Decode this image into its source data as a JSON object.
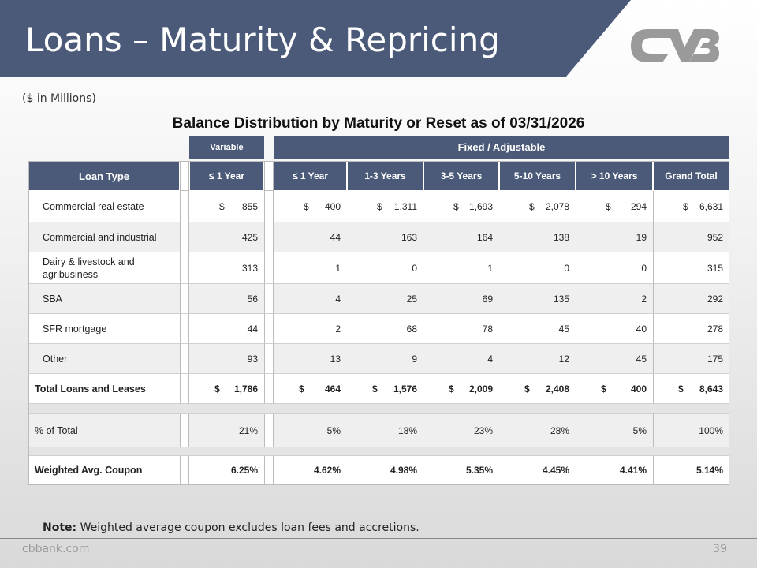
{
  "header": {
    "title": "Loans – Maturity & Repricing",
    "subtitle": "($ in Millions)"
  },
  "table": {
    "title": "Balance Distribution by Maturity or Reset as of 03/31/2026",
    "groups": [
      "Variable",
      "Fixed / Adjustable"
    ],
    "columns": [
      "Loan Type",
      "≤ 1 Year",
      "≤ 1 Year",
      "1-3 Years",
      "3-5 Years",
      "5-10 Years",
      "> 10 Years",
      "Grand Total"
    ],
    "rows": [
      {
        "label": "Commercial real estate",
        "currency": "$",
        "cells": [
          "855",
          "400",
          "1,311",
          "1,693",
          "2,078",
          "294",
          "6,631"
        ]
      },
      {
        "label": "Commercial and industrial",
        "cells": [
          "425",
          "44",
          "163",
          "164",
          "138",
          "19",
          "952"
        ]
      },
      {
        "label": "Dairy & livestock and agribusiness",
        "cells": [
          "313",
          "1",
          "0",
          "1",
          "0",
          "0",
          "315"
        ]
      },
      {
        "label": "SBA",
        "cells": [
          "56",
          "4",
          "25",
          "69",
          "135",
          "2",
          "292"
        ]
      },
      {
        "label": "SFR mortgage",
        "cells": [
          "44",
          "2",
          "68",
          "78",
          "45",
          "40",
          "278"
        ]
      },
      {
        "label": "Other",
        "cells": [
          "93",
          "13",
          "9",
          "4",
          "12",
          "45",
          "175"
        ]
      },
      {
        "label": "Total Loans and Leases",
        "currency": "$",
        "bold": true,
        "cells": [
          "1,786",
          "464",
          "1,576",
          "2,009",
          "2,408",
          "400",
          "8,643"
        ]
      },
      {
        "label": "% of Total",
        "cells": [
          "21%",
          "5%",
          "18%",
          "23%",
          "28%",
          "5%",
          "100%"
        ]
      },
      {
        "label": "Weighted Avg. Coupon",
        "bold": true,
        "cells": [
          "6.25%",
          "4.62%",
          "4.98%",
          "5.35%",
          "4.45%",
          "4.41%",
          "5.14%"
        ]
      }
    ]
  },
  "footer": {
    "note_label": "Note:",
    "note": "Weighted average coupon excludes loan fees and accretions.",
    "site": "cbbank.com",
    "page": "39"
  }
}
